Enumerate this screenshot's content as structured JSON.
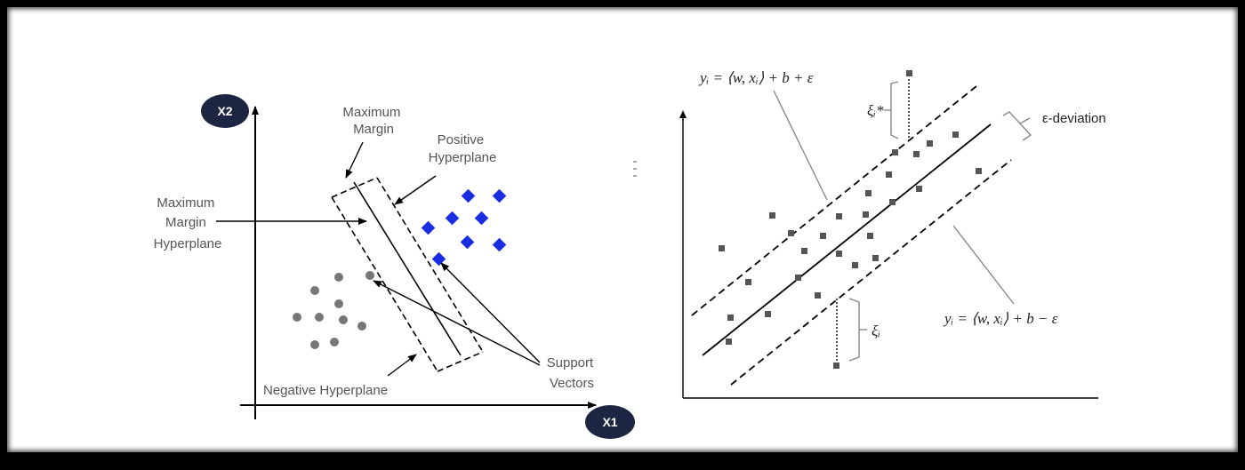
{
  "svm": {
    "axis_y_label": "X2",
    "axis_x_label": "X1",
    "label_maximum_margin": [
      "Maximum",
      "Margin"
    ],
    "label_positive_hyperplane": [
      "Positive",
      "Hyperplane"
    ],
    "label_mmh": [
      "Maximum",
      "Margin",
      "Hyperplane"
    ],
    "label_negative_hyperplane": "Negative Hyperplane",
    "label_support_vectors": [
      "Support",
      "Vectors"
    ],
    "colors": {
      "positive": "#1a2de0",
      "negative": "#777777",
      "badge": "#1c2541"
    }
  },
  "svr": {
    "eq_upper": "yᵢ = ⟨w, xᵢ⟩ + b + ε",
    "eq_lower": "yᵢ = ⟨w, xᵢ⟩ + b − ε",
    "xi_star": "ξᵢ*",
    "xi": "ξᵢ",
    "epsilon_label": "ε-deviation",
    "colors": {
      "point": "#555555"
    }
  }
}
